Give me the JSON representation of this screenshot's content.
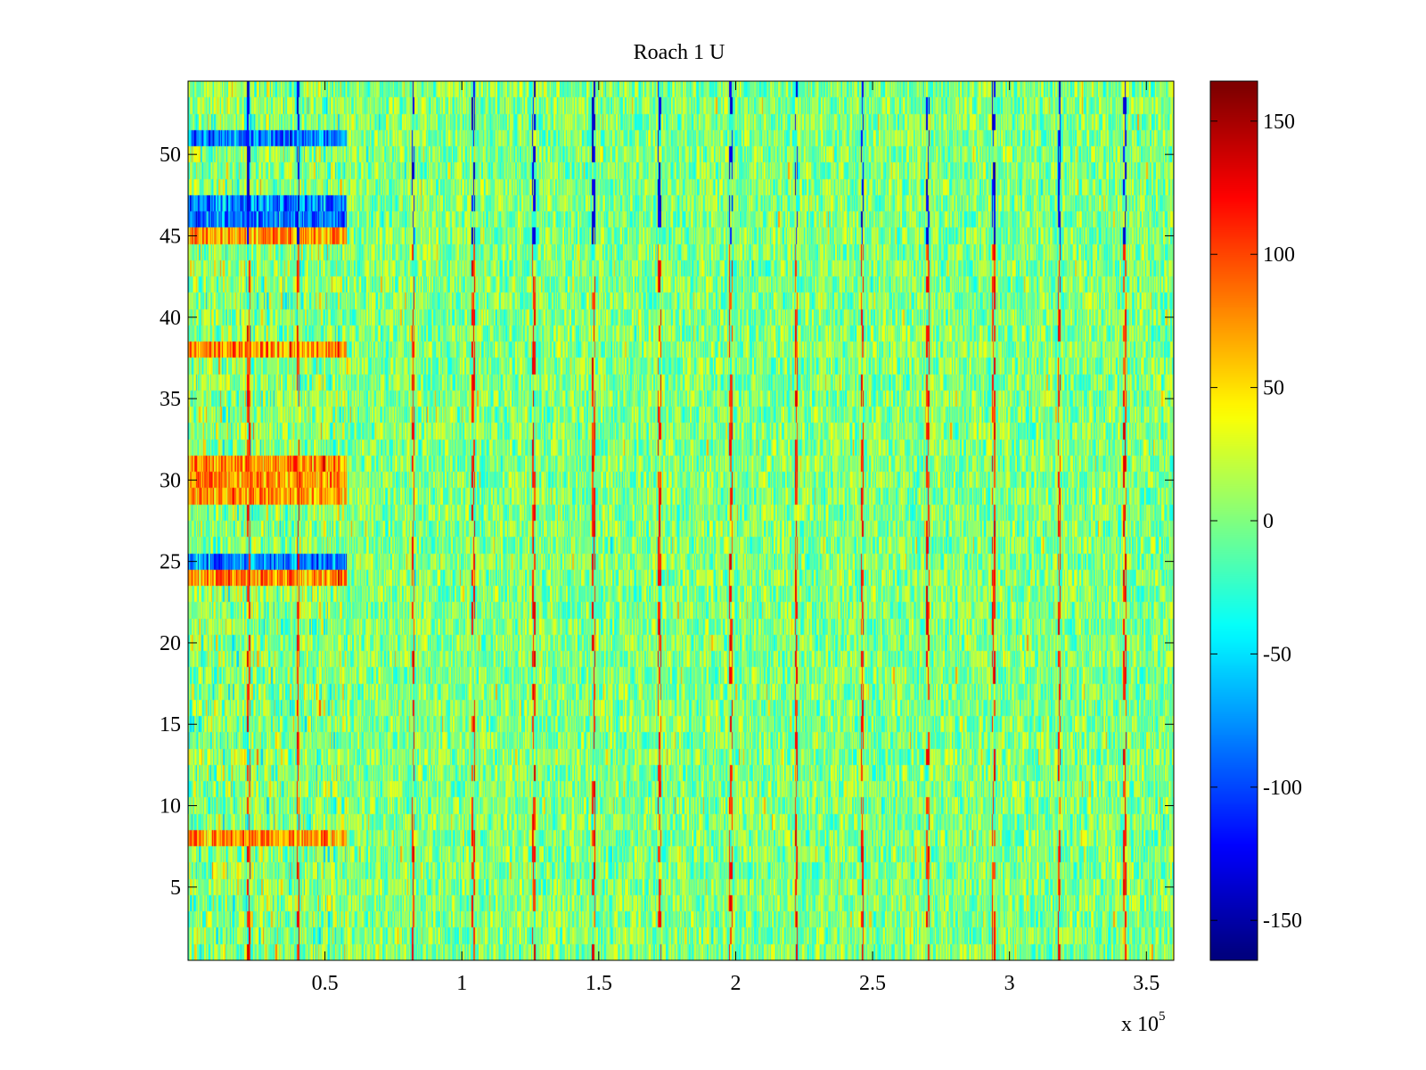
{
  "chart_data": {
    "type": "heatmap",
    "title": "Roach 1 U",
    "xlabel": "",
    "ylabel": "",
    "x_exponent_label": "x 10",
    "x_exponent_power": "5",
    "xlim": [
      0,
      360000
    ],
    "ylim": [
      0.5,
      54.5
    ],
    "rows": 54,
    "x_tick_values": [
      50000,
      100000,
      150000,
      200000,
      250000,
      300000,
      350000
    ],
    "x_tick_labels": [
      "0.5",
      "1",
      "1.5",
      "2",
      "2.5",
      "3",
      "3.5"
    ],
    "y_tick_values": [
      5,
      10,
      15,
      20,
      25,
      30,
      35,
      40,
      45,
      50
    ],
    "y_tick_labels": [
      "5",
      "10",
      "15",
      "20",
      "25",
      "30",
      "35",
      "40",
      "45",
      "50"
    ],
    "colorbar": {
      "colormap": "jet",
      "clim": [
        -165,
        165
      ],
      "tick_values": [
        150,
        100,
        50,
        0,
        -50,
        -100,
        -150
      ],
      "tick_labels": [
        "150",
        "100",
        "50",
        "0",
        "-50",
        "-100",
        "-150"
      ]
    },
    "features": {
      "noise_mean": 0,
      "noise_range": [
        -35,
        35
      ],
      "early_region_x": [
        0,
        58000
      ],
      "early_cold_rows": [
        25,
        46,
        47,
        51
      ],
      "early_hot_rows": [
        8,
        24,
        29,
        30,
        31,
        38,
        45
      ],
      "spike_x": [
        22000,
        40000,
        82000,
        104000,
        126000,
        148000,
        172000,
        198000,
        222000,
        246000,
        270000,
        294000,
        318000,
        342000
      ],
      "hot_cold_pattern": "repeating vertical spikes every ~24000 with blue streaks near top rows and red/orange streaks in middle rows"
    }
  }
}
